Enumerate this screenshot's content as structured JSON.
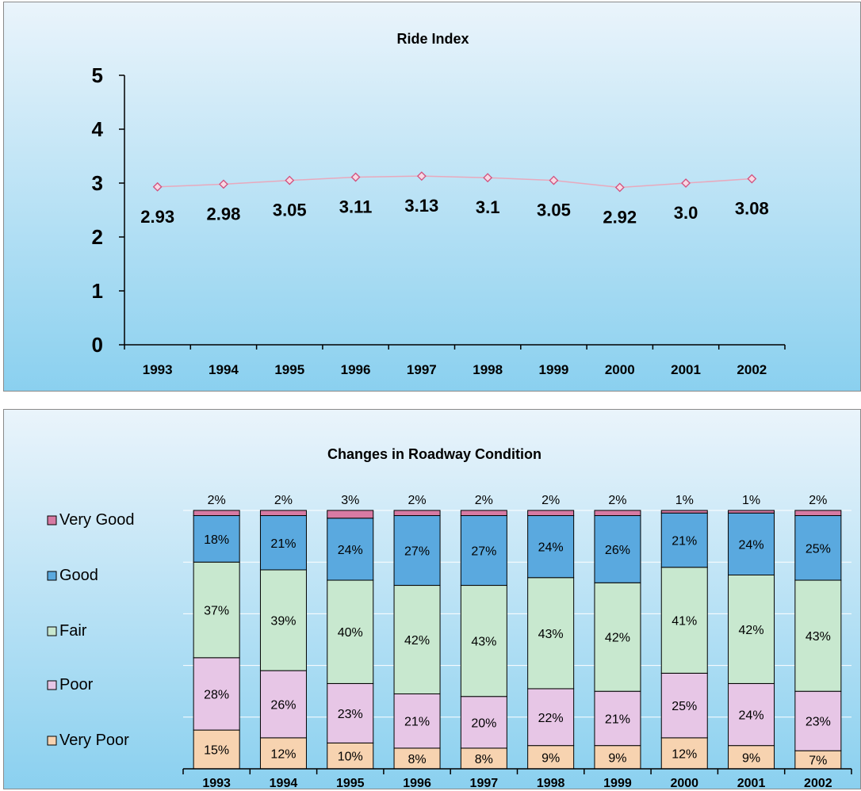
{
  "chart_data": [
    {
      "type": "line",
      "title": "Ride Index",
      "xlabel": "",
      "ylabel": "",
      "categories": [
        "1993",
        "1994",
        "1995",
        "1996",
        "1997",
        "1998",
        "1999",
        "2000",
        "2001",
        "2002"
      ],
      "series": [
        {
          "values": [
            2.93,
            2.98,
            3.05,
            3.11,
            3.13,
            3.1,
            3.05,
            2.92,
            3.0,
            3.08
          ],
          "labels": [
            "2.93",
            "2.98",
            "3.05",
            "3.11",
            "3.13",
            "3.1",
            "3.05",
            "2.92",
            "3.0",
            "3.08"
          ]
        }
      ],
      "ylim": [
        0,
        5
      ],
      "yticks": [
        "0",
        "1",
        "2",
        "3",
        "4",
        "5"
      ],
      "grid": false,
      "colors": {
        "line": "#e8a9bd",
        "marker": "#d24f7c",
        "marker_fill": "#f7d9e4",
        "bg_top": "#eaf4fb",
        "bg_bottom": "#8ad0ef"
      }
    },
    {
      "type": "bar",
      "stacked": true,
      "title": "Changes in Roadway Condition",
      "xlabel": "",
      "ylabel": "",
      "categories": [
        "1993",
        "1994",
        "1995",
        "1996",
        "1997",
        "1998",
        "1999",
        "2000",
        "2001",
        "2002"
      ],
      "legend_position": "left",
      "series": [
        {
          "name": "Very Poor",
          "values": [
            15,
            12,
            10,
            8,
            8,
            9,
            9,
            12,
            9,
            7
          ],
          "labels": [
            "15%",
            "12%",
            "10%",
            "8%",
            "8%",
            "9%",
            "9%",
            "12%",
            "9%",
            "7%"
          ],
          "color": "#f7d3b0"
        },
        {
          "name": "Poor",
          "values": [
            28,
            26,
            23,
            21,
            20,
            22,
            21,
            25,
            24,
            23
          ],
          "labels": [
            "28%",
            "26%",
            "23%",
            "21%",
            "20%",
            "22%",
            "21%",
            "25%",
            "24%",
            "23%"
          ],
          "color": "#e7c6e6"
        },
        {
          "name": "Fair",
          "values": [
            37,
            39,
            40,
            42,
            43,
            43,
            42,
            41,
            42,
            43
          ],
          "labels": [
            "37%",
            "39%",
            "40%",
            "42%",
            "43%",
            "43%",
            "42%",
            "41%",
            "42%",
            "43%"
          ],
          "color": "#c8e8cf"
        },
        {
          "name": "Good",
          "values": [
            18,
            21,
            24,
            27,
            27,
            24,
            26,
            21,
            24,
            25
          ],
          "labels": [
            "18%",
            "21%",
            "24%",
            "27%",
            "27%",
            "24%",
            "26%",
            "21%",
            "24%",
            "25%"
          ],
          "color": "#5aa9df"
        },
        {
          "name": "Very Good",
          "values": [
            2,
            2,
            3,
            2,
            2,
            2,
            2,
            1,
            1,
            2
          ],
          "labels": [
            "2%",
            "2%",
            "3%",
            "2%",
            "2%",
            "2%",
            "2%",
            "1%",
            "1%",
            "2%"
          ],
          "color": "#d77aa3"
        }
      ],
      "ylim": [
        0,
        100
      ],
      "grid": true,
      "colors": {
        "bg_top": "#eaf4fb",
        "bg_bottom": "#8ad0ef",
        "gridline": "#ffffff"
      }
    }
  ]
}
